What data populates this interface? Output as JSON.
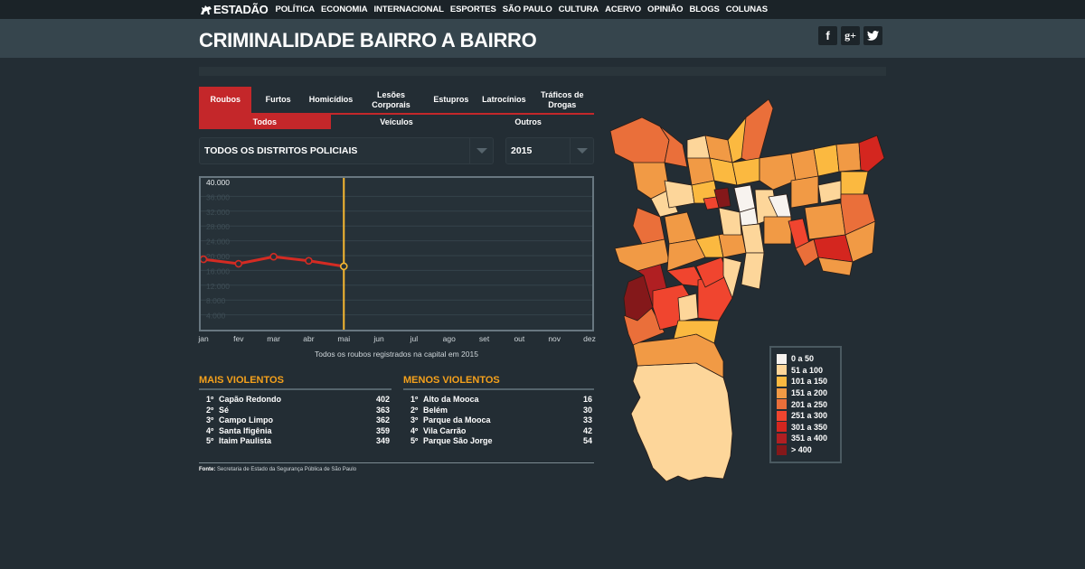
{
  "topnav": {
    "logo": "ESTADÃO",
    "items": [
      "POLÍTICA",
      "ECONOMIA",
      "INTERNACIONAL",
      "ESPORTES",
      "SÃO PAULO",
      "CULTURA",
      "ACERVO",
      "OPINIÃO",
      "BLOGS",
      "COLUNAS"
    ]
  },
  "header": {
    "title": "CRIMINALIDADE BAIRRO A BAIRRO",
    "social": [
      {
        "icon": "facebook-icon",
        "glyph": "f"
      },
      {
        "icon": "google-plus-icon",
        "glyph": "g+"
      },
      {
        "icon": "twitter-icon",
        "glyph": "t"
      }
    ]
  },
  "tabs": {
    "main": [
      {
        "label": "Roubos",
        "active": true
      },
      {
        "label": "Furtos",
        "active": false
      },
      {
        "label": "Homicídios",
        "active": false
      },
      {
        "label": "Lesões Corporais",
        "active": false
      },
      {
        "label": "Estupros",
        "active": false
      },
      {
        "label": "Latrocínios",
        "active": false
      },
      {
        "label": "Tráficos de Drogas",
        "active": false
      }
    ],
    "sub": [
      {
        "label": "Todos",
        "active": true
      },
      {
        "label": "Veículos",
        "active": false
      },
      {
        "label": "Outros",
        "active": false
      }
    ]
  },
  "filters": {
    "district": "TODOS OS DISTRITOS POLICIAIS",
    "year": "2015"
  },
  "chart_data": {
    "type": "line",
    "title": "",
    "caption": "Todos os roubos registrados na capital em 2015",
    "categories": [
      "jan",
      "fev",
      "mar",
      "abr",
      "mai",
      "jun",
      "jul",
      "ago",
      "set",
      "out",
      "nov",
      "dez"
    ],
    "series": [
      {
        "name": "Roubos 2015",
        "color": "#d42b23",
        "values": [
          19000,
          17800,
          19700,
          18600,
          17100,
          null,
          null,
          null,
          null,
          null,
          null,
          null
        ]
      }
    ],
    "selected_month": "mai",
    "selected_color": "#f5b731",
    "yticks": [
      "4.000",
      "8.000",
      "12.000",
      "16.000",
      "20.000",
      "24.000",
      "28.000",
      "32.000",
      "36.000",
      "40.000"
    ],
    "ytick_values": [
      4000,
      8000,
      12000,
      16000,
      20000,
      24000,
      28000,
      32000,
      36000,
      40000
    ],
    "ylim": [
      0,
      40000
    ],
    "xlabel": "",
    "ylabel": "",
    "grid": true
  },
  "rankings": {
    "most": {
      "title": "MAIS VIOLENTOS",
      "items": [
        {
          "pos": "1º",
          "name": "Capão Redondo",
          "value": "402"
        },
        {
          "pos": "2º",
          "name": "Sé",
          "value": "363"
        },
        {
          "pos": "3º",
          "name": "Campo Limpo",
          "value": "362"
        },
        {
          "pos": "4º",
          "name": "Santa Ifigênia",
          "value": "359"
        },
        {
          "pos": "5º",
          "name": "Itaim Paulista",
          "value": "349"
        }
      ]
    },
    "least": {
      "title": "MENOS VIOLENTOS",
      "items": [
        {
          "pos": "1º",
          "name": "Alto da Mooca",
          "value": "16"
        },
        {
          "pos": "2º",
          "name": "Belém",
          "value": "30"
        },
        {
          "pos": "3º",
          "name": "Parque da Mooca",
          "value": "33"
        },
        {
          "pos": "4º",
          "name": "Vila Carrão",
          "value": "42"
        },
        {
          "pos": "5º",
          "name": "Parque São Jorge",
          "value": "54"
        }
      ]
    }
  },
  "source": {
    "label": "Fonte:",
    "text": "Secretaria de Estado da Segurança Pública de São Paulo"
  },
  "legend": [
    {
      "label": "0 a 50",
      "color": "#f7f3ef"
    },
    {
      "label": "51 a 100",
      "color": "#fdd69a"
    },
    {
      "label": "101 a 150",
      "color": "#fbb940"
    },
    {
      "label": "151 a 200",
      "color": "#f19a45"
    },
    {
      "label": "201 a 250",
      "color": "#ea6f3a"
    },
    {
      "label": "251 a 300",
      "color": "#f0452f"
    },
    {
      "label": "301 a 350",
      "color": "#d4261f"
    },
    {
      "label": "351 a 400",
      "color": "#b01f22"
    },
    {
      "label": "> 400",
      "color": "#84181a"
    }
  ]
}
